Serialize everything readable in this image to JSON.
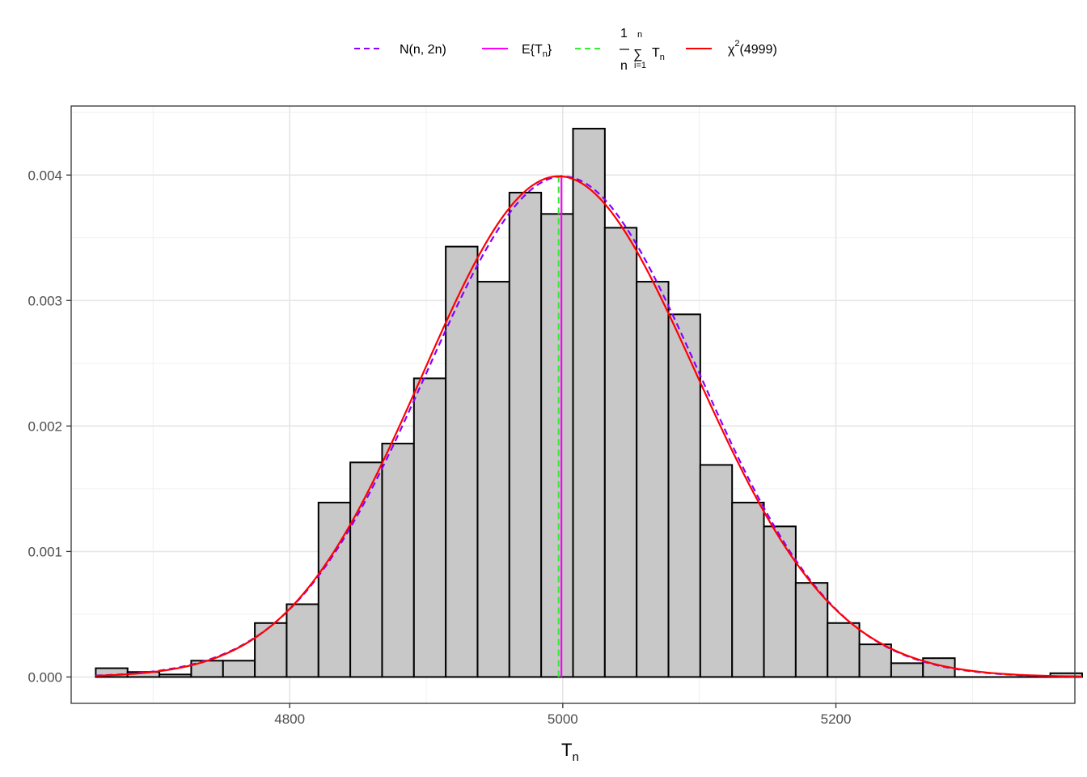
{
  "chart_data": {
    "type": "histogram",
    "xlabel": "T",
    "xlabel_sub": "n",
    "ylabel": "",
    "xlim": [
      4640,
      5375
    ],
    "ylim": [
      -0.00021,
      0.00455
    ],
    "x_ticks": [
      4800,
      5000,
      5200
    ],
    "x_tick_labels": [
      "4800",
      "5000",
      "5200"
    ],
    "y_ticks": [
      0,
      0.001,
      0.002,
      0.003,
      0.004
    ],
    "y_tick_labels": [
      "0.000",
      "0.001",
      "0.002",
      "0.003",
      "0.004"
    ],
    "grid": true,
    "legend_position": "top",
    "bins": {
      "start": 4658,
      "width": 23.3,
      "heights": [
        7e-05,
        4e-05,
        2e-05,
        0.00013,
        0.00013,
        0.00043,
        0.00058,
        0.00139,
        0.00171,
        0.00186,
        0.00238,
        0.00343,
        0.00315,
        0.00386,
        0.00369,
        0.00437,
        0.00358,
        0.00315,
        0.00289,
        0.00169,
        0.00139,
        0.0012,
        0.00075,
        0.00043,
        0.00026,
        0.00011,
        0.00015,
        0.0,
        0.0,
        0.0,
        3e-05
      ],
      "fill": "#c8c8c8",
      "stroke": "#000000"
    },
    "series": [
      {
        "name": "N(n, 2n)",
        "kind": "normal-density",
        "mean": 5000,
        "variance": 10000,
        "color": "#8800ff",
        "dash": true
      },
      {
        "name": "E{Tn}",
        "kind": "vline",
        "x": 4999,
        "color": "#ff00ff",
        "dash": false
      },
      {
        "name": "(1/n) Σ Tn",
        "kind": "vline",
        "x": 4997,
        "color": "#33ee33",
        "dash": true
      },
      {
        "name": "χ²(4999)",
        "kind": "chi-square-density",
        "df": 4999,
        "color": "#ff0000",
        "dash": false
      }
    ],
    "legend": {
      "normal_label": "N(n, 2n)",
      "mean_label_main": "E{T",
      "mean_label_sub": "n",
      "mean_label_close": "}",
      "avg_numerator": "1",
      "avg_denominator": "n",
      "avg_sum_top": "n",
      "avg_sum_symbol": "∑",
      "avg_sum_bottom": "i=1",
      "avg_term": "T",
      "avg_term_sub": "n",
      "chisq_symbol": "χ",
      "chisq_sup": "2",
      "chisq_df": "(4999)"
    }
  }
}
